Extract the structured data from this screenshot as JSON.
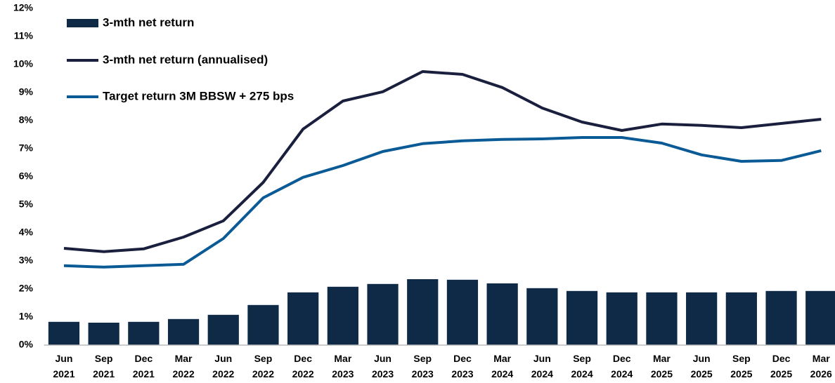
{
  "chart_data": {
    "type": "bar-line",
    "categories": [
      "Jun 2021",
      "Sep 2021",
      "Dec 2021",
      "Mar 2022",
      "Jun 2022",
      "Sep 2022",
      "Dec 2022",
      "Mar 2023",
      "Jun 2023",
      "Sep 2023",
      "Dec 2023",
      "Mar 2024",
      "Jun 2024",
      "Sep 2024",
      "Dec 2024",
      "Mar 2025",
      "Jun 2025",
      "Sep 2025",
      "Dec 2025",
      "Mar 2026"
    ],
    "series": [
      {
        "name": "3-mth net return",
        "type": "bar",
        "color": "#0e2a47",
        "values": [
          0.83,
          0.8,
          0.83,
          0.93,
          1.08,
          1.43,
          1.88,
          2.08,
          2.18,
          2.35,
          2.33,
          2.2,
          2.03,
          1.93,
          1.88,
          1.88,
          1.88,
          1.88,
          1.93,
          1.93
        ]
      },
      {
        "name": "3-mth net return (annualised)",
        "type": "line",
        "color": "#1a1f3d",
        "values": [
          3.45,
          3.33,
          3.43,
          3.85,
          4.43,
          5.8,
          7.7,
          8.7,
          9.03,
          9.75,
          9.65,
          9.18,
          8.45,
          7.95,
          7.65,
          7.88,
          7.83,
          7.75,
          7.9,
          8.05
        ]
      },
      {
        "name": "Target return 3M BBSW + 275 bps",
        "type": "line",
        "color": "#0a5a96",
        "values": [
          2.83,
          2.78,
          2.83,
          2.88,
          3.8,
          5.25,
          5.98,
          6.4,
          6.9,
          7.18,
          7.28,
          7.33,
          7.35,
          7.4,
          7.4,
          7.2,
          6.78,
          6.55,
          6.58,
          6.93
        ]
      }
    ],
    "ylim": [
      0,
      12
    ],
    "yticks": [
      {
        "value": 0,
        "label": "0%"
      },
      {
        "value": 1,
        "label": "1%"
      },
      {
        "value": 2,
        "label": "2%"
      },
      {
        "value": 3,
        "label": "3%"
      },
      {
        "value": 4,
        "label": "4%"
      },
      {
        "value": 5,
        "label": "5%"
      },
      {
        "value": 6,
        "label": "6%"
      },
      {
        "value": 7,
        "label": "7%"
      },
      {
        "value": 8,
        "label": "8%"
      },
      {
        "value": 9,
        "label": "9%"
      },
      {
        "value": 10,
        "label": "10%"
      },
      {
        "value": 11,
        "label": "11%"
      },
      {
        "value": 12,
        "label": "12%"
      }
    ],
    "grid": false,
    "legend": "top-left"
  }
}
